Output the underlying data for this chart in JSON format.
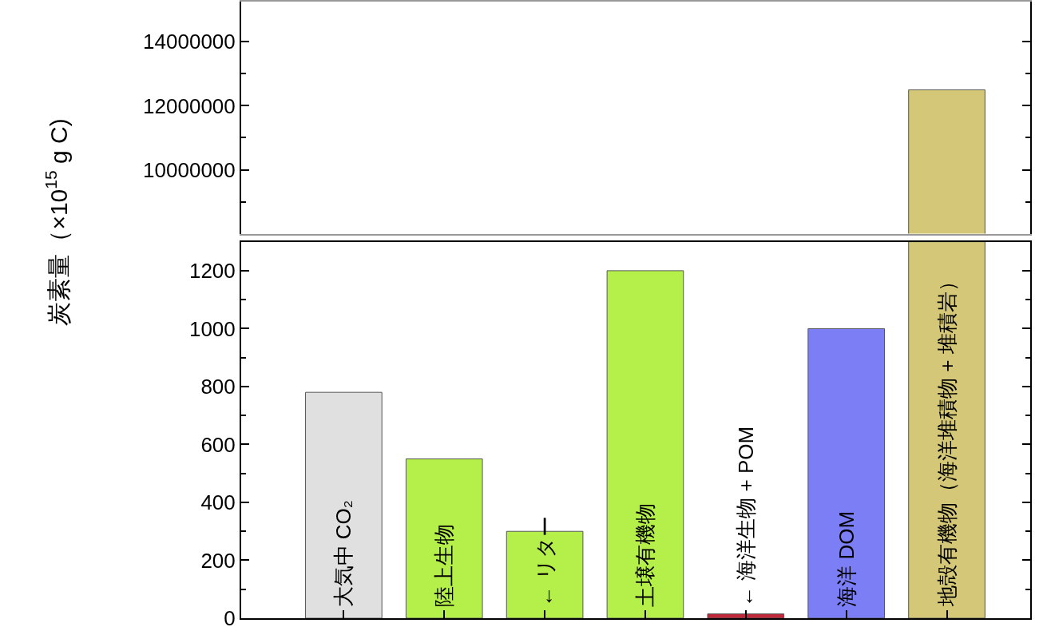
{
  "chart_data": [
    {
      "type": "bar",
      "categories": [
        null,
        null,
        null,
        null,
        null,
        null,
        null
      ],
      "colors": [
        "#e0e0e0",
        "#b5f04a",
        "#b5f04a",
        "#b5f04a",
        "#c0283a",
        "#7b7ef5",
        "#d4c878"
      ],
      "values": [
        null,
        null,
        null,
        null,
        null,
        null,
        12500000
      ],
      "ylim": [
        8000000,
        15250000
      ],
      "yticks": [
        {
          "value": 9000000,
          "label": null
        },
        10000000,
        {
          "value": 11000000,
          "label": null
        },
        12000000,
        {
          "value": 13000000,
          "label": null
        },
        14000000
      ],
      "tick_labels": "y",
      "grid": false
    },
    {
      "type": "bar",
      "categories": [
        "大気中 CO₂",
        "陸上生物",
        "← リター",
        "土壌有機物",
        "← 海洋生物 + POM",
        "海洋 DOM",
        "地殻有機物（海洋堆積物 + 堆積岩）"
      ],
      "colors": [
        "#e0e0e0",
        "#b5f04a",
        "#b5f04a",
        "#b5f04a",
        "#c0283a",
        "#7b7ef5",
        "#d4c878"
      ],
      "values": [
        780,
        550,
        300,
        1200,
        15,
        1000,
        null
      ],
      "ylim": [
        0,
        1300
      ],
      "yticks": [
        0,
        {
          "value": 100,
          "label": null
        },
        200,
        {
          "value": 300,
          "label": null
        },
        400,
        {
          "value": 500,
          "label": null
        },
        600,
        {
          "value": 700,
          "label": null
        },
        800,
        {
          "value": 900,
          "label": null
        },
        1000,
        {
          "value": 1100,
          "label": null
        },
        1200
      ],
      "ylabel": "炭素量（×10$^{15}$ g C)",
      "grid": false
    }
  ]
}
